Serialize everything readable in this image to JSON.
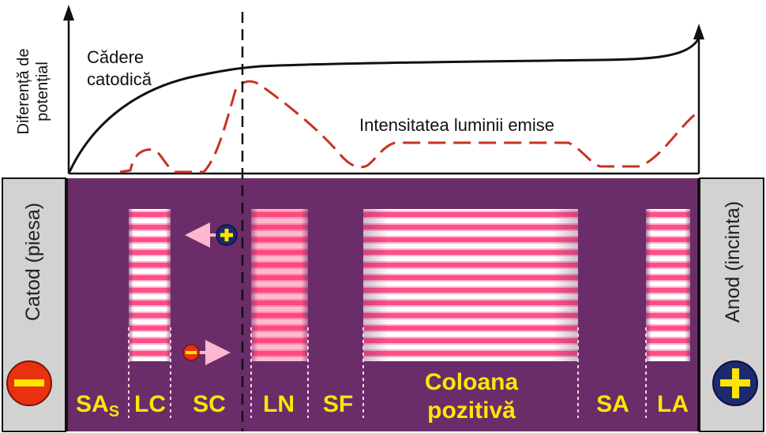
{
  "y_axis_label_line1": "Diferență de",
  "y_axis_label_line2": "potențial",
  "curve_potential_label_line1": "Cădere",
  "curve_potential_label_line2": "catodică",
  "curve_light_label": "Intensitatea luminii emise",
  "cathode_label": "Catod (piesa)",
  "anode_label": "Anod (incinta)",
  "cathode_sign": "−",
  "anode_sign": "+",
  "ion_sign": "+",
  "electron_sign": "−",
  "zones": {
    "sas_main": "SA",
    "sas_sub": "S",
    "lc": "LC",
    "sc": "SC",
    "ln": "LN",
    "sf": "SF",
    "positive_column_line1": "Coloana",
    "positive_column_line2": "pozitivă",
    "sa": "SA",
    "la": "LA"
  },
  "colors": {
    "discharge": "#6b2d6a",
    "electrode": "#d2d2d2",
    "glow": "#ff5a8c",
    "zone_label": "#ffe600",
    "light_curve": "#c8321e",
    "cathode_sign_bg": "#e8320f",
    "anode_sign_bg": "#1e2a6e",
    "sign_fg": "#ffe600"
  }
}
